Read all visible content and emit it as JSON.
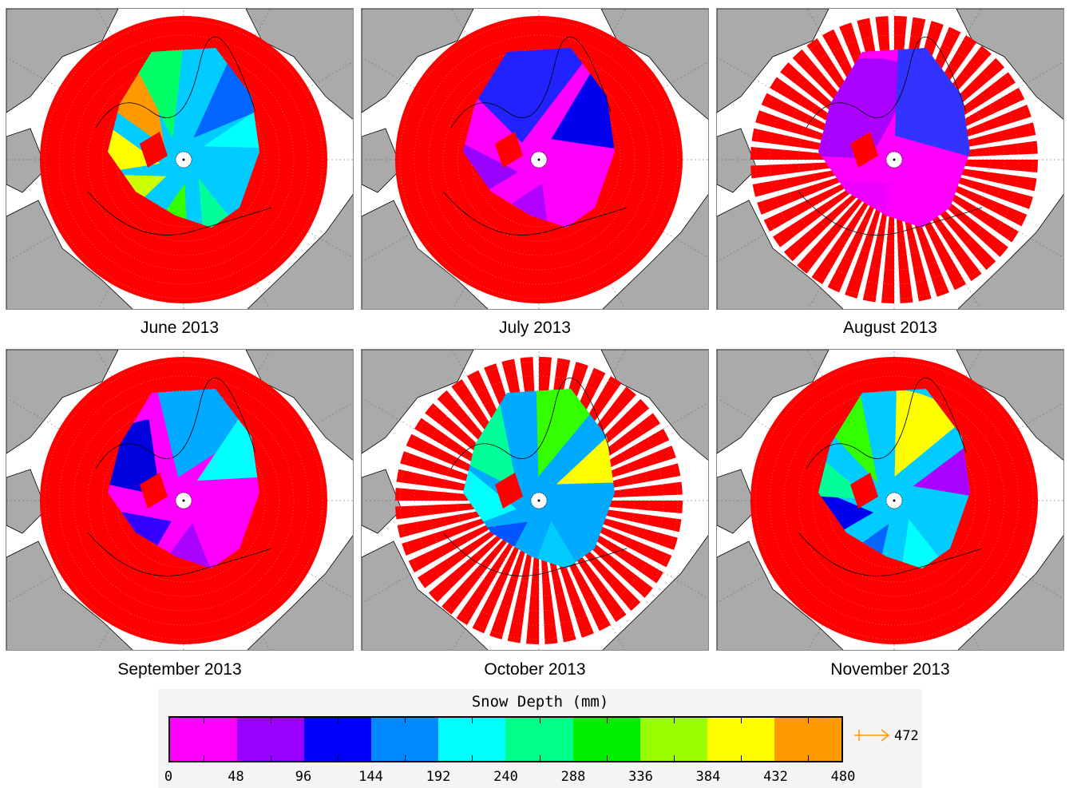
{
  "panels": [
    {
      "caption": "June 2013",
      "spokes": "solid",
      "palette": [
        "#00ccff",
        "#00ff99",
        "#33ff00",
        "#ccff00",
        "#ffff00",
        "#ff9900",
        "#00ff66",
        "#0066ff",
        "#00ffff"
      ]
    },
    {
      "caption": "July 2013",
      "spokes": "solid",
      "palette": [
        "#ff00ff",
        "#b000ff",
        "#9900ff",
        "#2222ff",
        "#0000ee"
      ]
    },
    {
      "caption": "August 2013",
      "spokes": "gapped",
      "palette": [
        "#ff00ff",
        "#ee00ff",
        "#aa00ff",
        "#3333ff"
      ]
    },
    {
      "caption": "September 2013",
      "spokes": "solid",
      "palette": [
        "#ff00ff",
        "#aa00ff",
        "#3300ff",
        "#0000dd",
        "#00aaff",
        "#00ffff"
      ]
    },
    {
      "caption": "October 2013",
      "spokes": "gapped",
      "palette": [
        "#00aaff",
        "#00ccff",
        "#0055ff",
        "#00ffff",
        "#00ff99",
        "#33ff00",
        "#ffff00"
      ]
    },
    {
      "caption": "November 2013",
      "spokes": "solid",
      "palette": [
        "#00ccff",
        "#00ffff",
        "#0066ff",
        "#0000ee",
        "#00ff99",
        "#33ff00",
        "#ffff00",
        "#aa00ff"
      ]
    }
  ],
  "legend": {
    "title": "Snow Depth (mm)",
    "colors": [
      "#ff00ff",
      "#9900ff",
      "#0000ff",
      "#0088ff",
      "#00ffff",
      "#00ff88",
      "#00ee00",
      "#99ff00",
      "#ffff00",
      "#ff9900"
    ],
    "ticks": [
      "0",
      "48",
      "96",
      "144",
      "192",
      "240",
      "288",
      "336",
      "384",
      "432",
      "480"
    ],
    "overflow_value": "472",
    "overflow_arrow_color": "#ff9900"
  },
  "map_colors": {
    "land": "#aaaaaa",
    "ocean": "#ffffff",
    "no_data": "#ff0000"
  }
}
